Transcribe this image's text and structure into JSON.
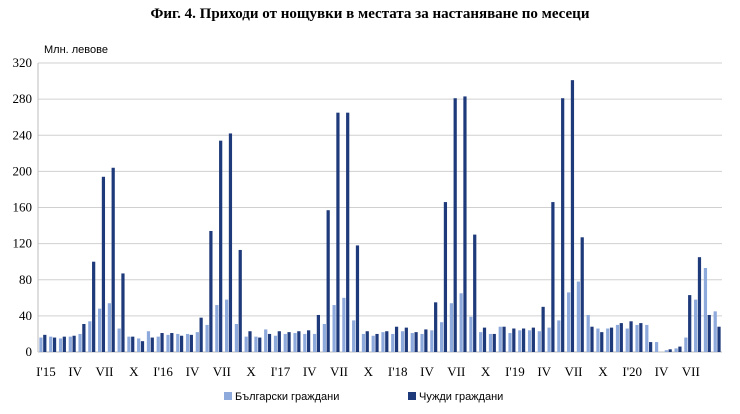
{
  "chart_data": {
    "type": "bar",
    "title": "Фиг. 4. Приходи от нощувки в местата за настаняване по месеци",
    "ylabel": "Млн. левове",
    "ylim": [
      0,
      320
    ],
    "yticks": [
      0,
      40,
      80,
      120,
      160,
      200,
      240,
      280,
      320
    ],
    "grid": true,
    "legend_position": "bottom",
    "x_tick_labels": [
      "I'15",
      "IV",
      "VII",
      "X",
      "I'16",
      "IV",
      "VII",
      "X",
      "I'17",
      "IV",
      "VII",
      "X",
      "I'18",
      "IV",
      "VII",
      "X",
      "I'19",
      "IV",
      "VII",
      "X",
      "I'20",
      "IV",
      "VII"
    ],
    "series": [
      {
        "name": "Български граждани",
        "color": "#8ea9db",
        "values": [
          16,
          17,
          15,
          17,
          20,
          34,
          48,
          54,
          26,
          17,
          15,
          23,
          17,
          19,
          20,
          20,
          22,
          30,
          52,
          58,
          31,
          17,
          17,
          25,
          18,
          20,
          21,
          20,
          20,
          31,
          52,
          60,
          35,
          20,
          18,
          22,
          20,
          23,
          21,
          20,
          24,
          33,
          54,
          65,
          39,
          22,
          20,
          28,
          21,
          24,
          24,
          23,
          27,
          35,
          66,
          78,
          41,
          26,
          26,
          30,
          26,
          30,
          30,
          11,
          2,
          4,
          16,
          58,
          93,
          45
        ]
      },
      {
        "name": "Чужди граждани",
        "color": "#1f3a7a",
        "values": [
          19,
          16,
          17,
          18,
          31,
          100,
          194,
          204,
          87,
          17,
          12,
          16,
          21,
          21,
          18,
          19,
          38,
          134,
          234,
          242,
          113,
          23,
          16,
          20,
          23,
          22,
          23,
          24,
          41,
          157,
          265,
          265,
          118,
          23,
          20,
          23,
          28,
          27,
          22,
          25,
          55,
          166,
          281,
          283,
          130,
          27,
          20,
          28,
          26,
          26,
          27,
          50,
          166,
          281,
          301,
          127,
          28,
          22,
          27,
          32,
          34,
          32,
          11,
          0,
          3,
          6,
          63,
          105,
          41,
          28
        ]
      }
    ]
  }
}
